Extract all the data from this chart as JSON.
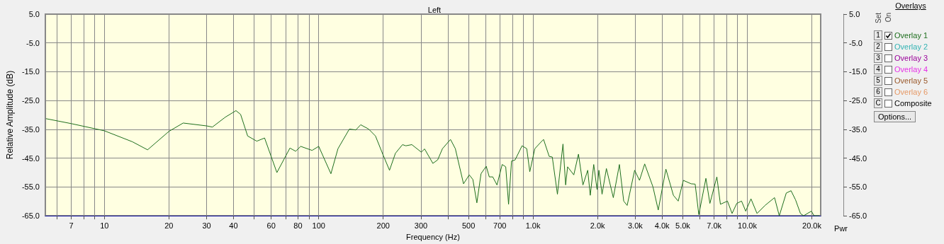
{
  "chart_data": {
    "type": "line",
    "title": "Left",
    "xlabel": "Frequency (Hz)",
    "ylabel": "Relative Amplitude (dB)",
    "log": "x",
    "grid": true,
    "legend": "right",
    "marker": "none",
    "line_style": "solid",
    "xlim": [
      5.3,
      22000
    ],
    "xticks": [
      {
        "value": 6,
        "label": null
      },
      7,
      {
        "value": 8,
        "label": null
      },
      {
        "value": 9,
        "label": null
      },
      10,
      20,
      30,
      40,
      {
        "value": 50,
        "label": null
      },
      60,
      {
        "value": 70,
        "label": null
      },
      80,
      {
        "value": 90,
        "label": null
      },
      100,
      200,
      300,
      {
        "value": 400,
        "label": null
      },
      500,
      {
        "value": 600,
        "label": null
      },
      700,
      {
        "value": 800,
        "label": null
      },
      {
        "value": 900,
        "label": null
      },
      {
        "value": 1000,
        "label": "1.0k"
      },
      {
        "value": 2000,
        "label": "2.0k"
      },
      {
        "value": 3000,
        "label": "3.0k"
      },
      {
        "value": 4000,
        "label": "4.0k"
      },
      {
        "value": 5000,
        "label": "5.0k"
      },
      {
        "value": 6000,
        "label": null
      },
      {
        "value": 7000,
        "label": "7.0k"
      },
      {
        "value": 8000,
        "label": null
      },
      {
        "value": 9000,
        "label": null
      },
      {
        "value": 10000,
        "label": "10.0k"
      },
      {
        "value": 20000,
        "label": "20.0k"
      }
    ],
    "ylim": [
      -65,
      5
    ],
    "yticks": [
      {
        "value": 5,
        "label": "5.0"
      },
      {
        "value": -5,
        "label": "-5.0"
      },
      {
        "value": -15,
        "label": "-15.0"
      },
      {
        "value": -25,
        "label": "-25.0"
      },
      {
        "value": -35,
        "label": "-35.0"
      },
      {
        "value": -45,
        "label": "-45.0"
      },
      {
        "value": -55,
        "label": "-55.0"
      },
      {
        "value": -65,
        "label": "-65.0"
      }
    ],
    "y2lim": [
      -65,
      5
    ],
    "y2ticks": [
      {
        "value": 5,
        "label": "5.0"
      },
      {
        "value": -5,
        "label": "-5.0"
      },
      {
        "value": -15,
        "label": "-15.0"
      },
      {
        "value": -25,
        "label": "-25.0"
      },
      {
        "value": -35,
        "label": "-35.0"
      },
      {
        "value": -45,
        "label": "-45.0"
      },
      {
        "value": -55,
        "label": "-55.0"
      },
      {
        "value": -65,
        "label": "-65.0"
      }
    ],
    "y2label": "Pwr",
    "annotations": [
      "Overlays",
      "Set",
      "On",
      "1",
      "2",
      "3",
      "4",
      "5",
      "6",
      "C",
      "Overlay 2",
      "Overlay 3",
      "Overlay 4",
      "Overlay 5",
      "Overlay 6",
      "Composite",
      "Options..."
    ],
    "series": [
      {
        "name": "Overlay 1",
        "color": "#1e6e1e",
        "x": [
          5.35,
          7,
          10,
          13.5,
          15.9,
          20,
          23.3,
          30,
          31.9,
          36.6,
          41.1,
          43.2,
          46.6,
          51.4,
          55.9,
          63.8,
          73.4,
          78.1,
          82.4,
          93.1,
          100,
          114,
          123,
          139,
          149,
          157,
          171,
          184,
          200,
          214,
          228,
          246,
          255,
          272,
          301,
          312,
          341,
          359,
          378,
          412,
          434,
          474,
          504,
          524,
          547,
          572,
          605,
          625,
          649,
          679,
          718,
          746,
          769,
          794,
          825,
          889,
          935,
          966,
          1020,
          1080,
          1120,
          1190,
          1230,
          1300,
          1380,
          1420,
          1450,
          1550,
          1630,
          1710,
          1800,
          1850,
          1920,
          1990,
          2030,
          2100,
          2200,
          2370,
          2530,
          2650,
          2750,
          2980,
          3140,
          3320,
          3630,
          3840,
          4170,
          4520,
          4760,
          5030,
          5470,
          5710,
          5940,
          6410,
          6690,
          7210,
          7490,
          8080,
          8490,
          8930,
          9400,
          9830,
          10400,
          11100,
          12100,
          13400,
          14100,
          15200,
          16000,
          16800,
          17700,
          18300,
          19900,
          20500,
          21600
        ],
        "values": [
          -31.3,
          -33.0,
          -35.5,
          -39.3,
          -42.1,
          -35.7,
          -32.8,
          -33.8,
          -34.2,
          -30.8,
          -28.5,
          -29.8,
          -37.3,
          -39.1,
          -38.0,
          -50.0,
          -41.5,
          -42.6,
          -40.9,
          -42.3,
          -40.9,
          -50.4,
          -41.7,
          -34.9,
          -35.2,
          -33.4,
          -34.9,
          -37.3,
          -44.0,
          -49.2,
          -43.3,
          -40.3,
          -40.7,
          -40.3,
          -42.9,
          -41.8,
          -46.8,
          -45.6,
          -41.7,
          -38.5,
          -41.7,
          -53.9,
          -50.8,
          -52.4,
          -60.5,
          -50.4,
          -47.8,
          -51.5,
          -51.5,
          -54.3,
          -47.2,
          -48.0,
          -61.0,
          -46.0,
          -45.6,
          -40.7,
          -41.7,
          -49.7,
          -41.7,
          -39.7,
          -38.5,
          -44.4,
          -44.6,
          -57.5,
          -40.1,
          -54.3,
          -48.0,
          -50.8,
          -43.6,
          -54.3,
          -49.2,
          -57.9,
          -47.2,
          -55.9,
          -49.2,
          -57.5,
          -48.6,
          -58.7,
          -47.2,
          -59.9,
          -61.4,
          -49.2,
          -52.7,
          -47.0,
          -55.0,
          -63.0,
          -48.8,
          -57.9,
          -59.9,
          -52.7,
          -53.9,
          -54.0,
          -64.6,
          -52.0,
          -60.7,
          -51.5,
          -61.0,
          -59.9,
          -64.2,
          -60.7,
          -59.9,
          -63.4,
          -59.1,
          -64.2,
          -61.4,
          -58.7,
          -65.0,
          -57.1,
          -56.3,
          -59.5,
          -64.2,
          -65.0,
          -63.4,
          -65.0,
          -65.0
        ]
      }
    ]
  }
}
